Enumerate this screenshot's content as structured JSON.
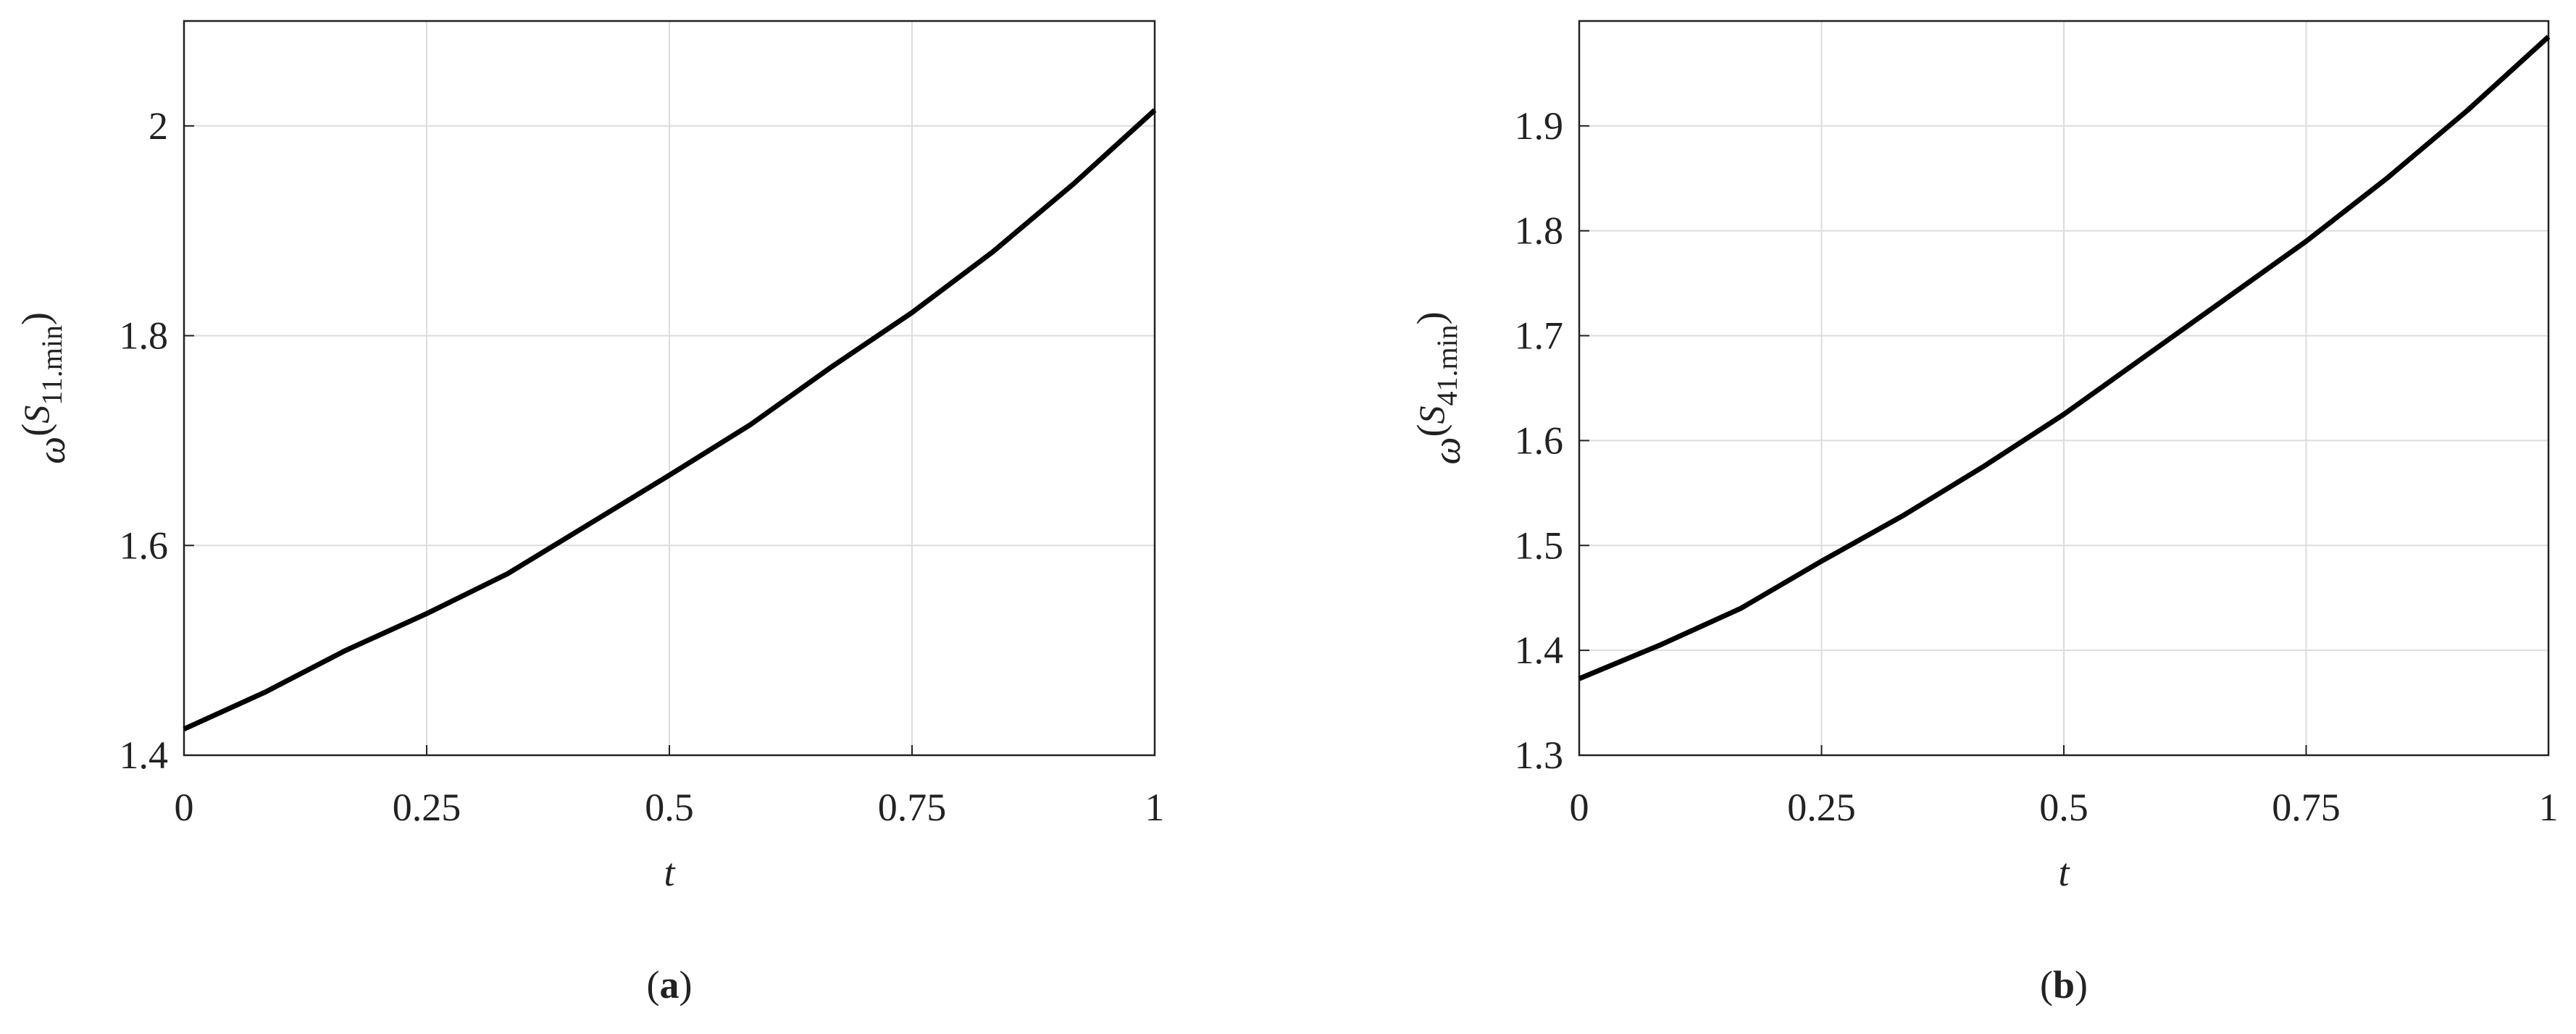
{
  "chart_data": [
    {
      "type": "line",
      "caption": [
        "(",
        "a",
        ")"
      ],
      "xlabel": "t",
      "ylabel": [
        "ω",
        "(",
        "S",
        "11.min",
        ")"
      ],
      "xlim": [
        0,
        1
      ],
      "ylim": [
        1.4,
        2.1
      ],
      "xticks": [
        0,
        0.25,
        0.5,
        0.75,
        1
      ],
      "yticks": [
        1.4,
        1.6,
        1.8,
        2
      ],
      "grid": true,
      "series": [
        {
          "color": "#000000",
          "x": [
            0,
            0.0833,
            0.1667,
            0.25,
            0.3333,
            0.4167,
            0.5,
            0.5833,
            0.6667,
            0.75,
            0.8333,
            0.9167,
            1
          ],
          "values": [
            1.425,
            1.46,
            1.5,
            1.535,
            1.573,
            1.62,
            1.667,
            1.715,
            1.77,
            1.822,
            1.88,
            1.945,
            2.015
          ]
        }
      ]
    },
    {
      "type": "line",
      "caption": [
        "(",
        "b",
        ")"
      ],
      "xlabel": "t",
      "ylabel": [
        "ω",
        "(",
        "S",
        "41.min",
        ")"
      ],
      "xlim": [
        0,
        1
      ],
      "ylim": [
        1.3,
        2.0
      ],
      "xticks": [
        0,
        0.25,
        0.5,
        0.75,
        1
      ],
      "yticks": [
        1.3,
        1.4,
        1.5,
        1.6,
        1.7,
        1.8,
        1.9
      ],
      "grid": true,
      "series": [
        {
          "color": "#000000",
          "x": [
            0,
            0.0833,
            0.1667,
            0.25,
            0.3333,
            0.4167,
            0.5,
            0.5833,
            0.6667,
            0.75,
            0.8333,
            0.9167,
            1
          ],
          "values": [
            1.373,
            1.405,
            1.44,
            1.485,
            1.528,
            1.575,
            1.625,
            1.68,
            1.735,
            1.79,
            1.85,
            1.915,
            1.985
          ]
        }
      ]
    }
  ]
}
